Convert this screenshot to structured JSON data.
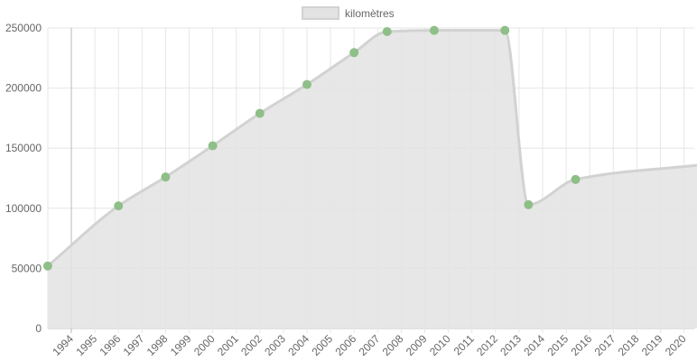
{
  "chart_data": {
    "type": "area",
    "series": [
      {
        "name": "kilomètres",
        "points": [
          {
            "x": 1993.0,
            "y": 52000
          },
          {
            "x": 1996.0,
            "y": 102000
          },
          {
            "x": 1998.0,
            "y": 126000
          },
          {
            "x": 2000.0,
            "y": 152000
          },
          {
            "x": 2002.0,
            "y": 179000
          },
          {
            "x": 2004.0,
            "y": 203000
          },
          {
            "x": 2006.0,
            "y": 229500
          },
          {
            "x": 2007.4,
            "y": 247000
          },
          {
            "x": 2009.4,
            "y": 248000
          },
          {
            "x": 2012.4,
            "y": 248000
          },
          {
            "x": 2013.4,
            "y": 103000
          },
          {
            "x": 2015.4,
            "y": 124000
          },
          {
            "x": 2020.9,
            "y": 136500
          }
        ]
      }
    ],
    "x_ticks": [
      "1994",
      "1995",
      "1996",
      "1997",
      "1998",
      "1999",
      "2000",
      "2001",
      "2002",
      "2003",
      "2004",
      "2005",
      "2006",
      "2007",
      "2008",
      "2009",
      "2010",
      "2011",
      "2012",
      "2013",
      "2014",
      "2015",
      "2016",
      "2017",
      "2018",
      "2019",
      "2020"
    ],
    "y_ticks": [
      "0",
      "50000",
      "100000",
      "150000",
      "200000",
      "250000"
    ],
    "ylim": [
      0,
      250000
    ],
    "grid": true,
    "legend_position": "top-center",
    "colors": {
      "fill": "#e3e3e3",
      "line": "#d2d2d2",
      "point": "#8fbf88",
      "grid": "#e6e6e6",
      "zero_line": "#c8c8c8",
      "text": "#666666"
    }
  }
}
